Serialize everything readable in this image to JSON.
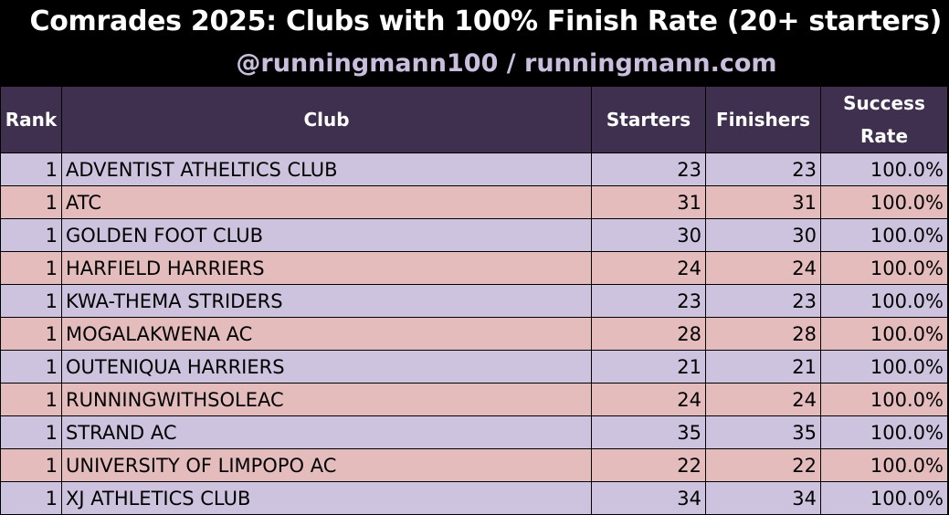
{
  "header": {
    "title": "Comrades 2025: Clubs with 100% Finish Rate (20+ starters)",
    "subtitle": "@runningmann100 / runningmann.com"
  },
  "colors": {
    "header_bg": "#403050",
    "row_odd": "#cdc3de",
    "row_even": "#e5bcbc",
    "subtitle": "#c9bedd"
  },
  "chart_data": {
    "type": "table",
    "title": "Comrades 2025: Clubs with 100% Finish Rate (20+ starters)",
    "subtitle": "@runningmann100 / runningmann.com",
    "columns": [
      "Rank",
      "Club",
      "Starters",
      "Finishers",
      "Success Rate"
    ],
    "rows": [
      [
        "1",
        "ADVENTIST ATHELTICS CLUB",
        "23",
        "23",
        "100.0%"
      ],
      [
        "1",
        "ATC",
        "31",
        "31",
        "100.0%"
      ],
      [
        "1",
        "GOLDEN FOOT CLUB",
        "30",
        "30",
        "100.0%"
      ],
      [
        "1",
        "HARFIELD HARRIERS",
        "24",
        "24",
        "100.0%"
      ],
      [
        "1",
        "KWA-THEMA STRIDERS",
        "23",
        "23",
        "100.0%"
      ],
      [
        "1",
        "MOGALAKWENA AC",
        "28",
        "28",
        "100.0%"
      ],
      [
        "1",
        "OUTENIQUA HARRIERS",
        "21",
        "21",
        "100.0%"
      ],
      [
        "1",
        "RUNNINGWITHSOLEAC",
        "24",
        "24",
        "100.0%"
      ],
      [
        "1",
        "STRAND AC",
        "35",
        "35",
        "100.0%"
      ],
      [
        "1",
        "UNIVERSITY OF LIMPOPO AC",
        "22",
        "22",
        "100.0%"
      ],
      [
        "1",
        "XJ ATHLETICS CLUB",
        "34",
        "34",
        "100.0%"
      ]
    ]
  }
}
